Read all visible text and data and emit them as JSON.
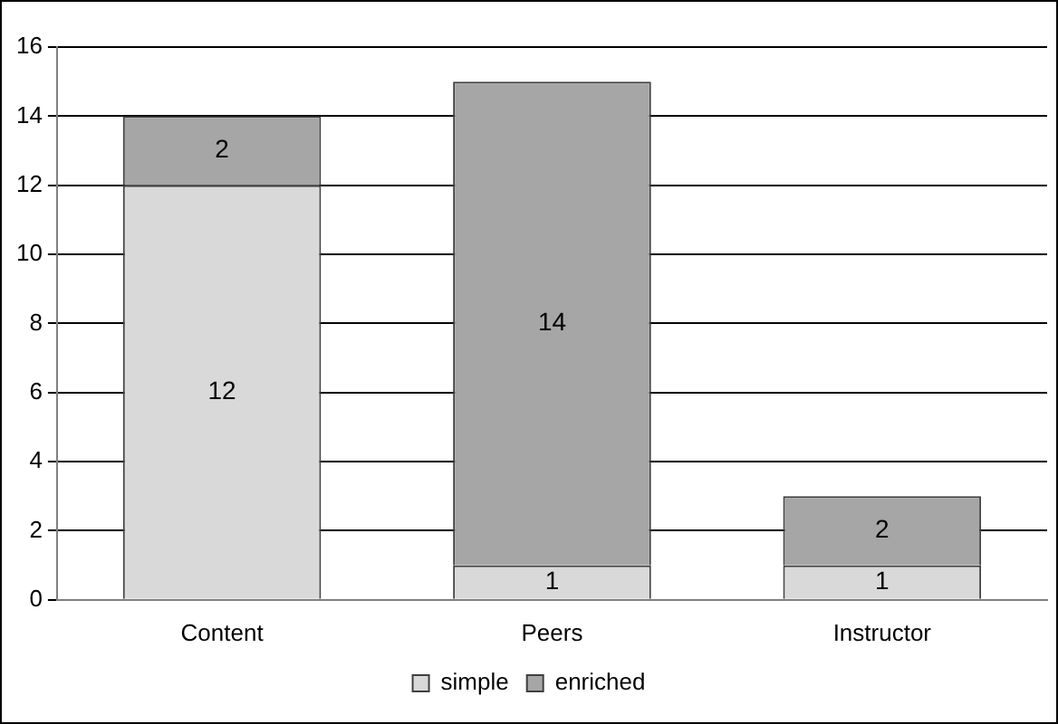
{
  "chart_data": {
    "type": "bar",
    "stacked": true,
    "categories": [
      "Content",
      "Peers",
      "Instructor"
    ],
    "series": [
      {
        "name": "simple",
        "color": "#d9d9d9",
        "values": [
          12,
          1,
          1
        ]
      },
      {
        "name": "enriched",
        "color": "#a6a6a6",
        "values": [
          2,
          14,
          2
        ]
      }
    ],
    "ylim": [
      0,
      16
    ],
    "yticks": [
      0,
      2,
      4,
      6,
      8,
      10,
      12,
      14,
      16
    ],
    "grid": "y",
    "legend": "bottom",
    "data_labels": true
  }
}
